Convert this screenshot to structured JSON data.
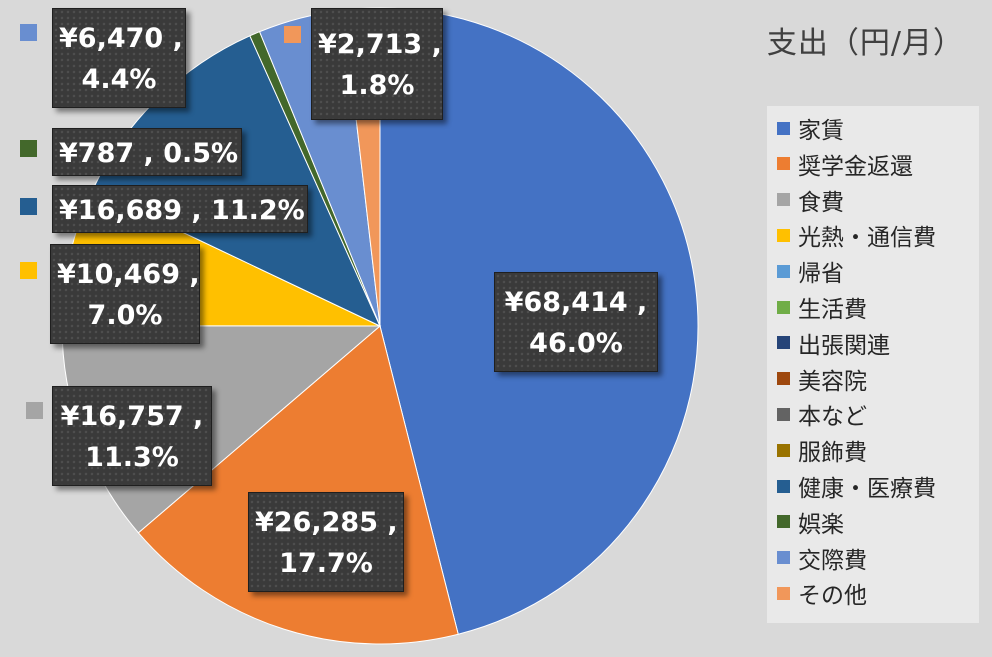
{
  "chart_data": {
    "type": "pie",
    "title": "支出（円/月）",
    "categories": [
      "家賃",
      "奨学金返還",
      "食費",
      "光熱・通信費",
      "帰省",
      "生活費",
      "出張関連",
      "美容院",
      "本など",
      "服飾費",
      "健康・医療費",
      "娯楽",
      "交際費",
      "その他"
    ],
    "values": [
      68414,
      26285,
      16757,
      10469,
      0,
      0,
      0,
      0,
      0,
      0,
      16689,
      787,
      6470,
      2713
    ],
    "percentages": [
      "46.0%",
      "17.7%",
      "11.3%",
      "7.0%",
      "",
      "",
      "",
      "",
      "",
      "",
      "11.2%",
      "0.5%",
      "4.4%",
      "1.8%"
    ],
    "value_labels": [
      "¥68,414",
      "¥26,285",
      "¥16,757",
      "¥10,469",
      "",
      "",
      "",
      "",
      "",
      "",
      "¥16,689",
      "¥787",
      "¥6,470",
      "¥2,713"
    ],
    "colors": [
      "#4472c4",
      "#ed7d31",
      "#a5a5a5",
      "#ffc000",
      "#5b9bd5",
      "#70ad47",
      "#264478",
      "#9e480e",
      "#636363",
      "#997300",
      "#255e91",
      "#43682b",
      "#698ed0",
      "#f1975a"
    ],
    "legend_position": "right"
  }
}
